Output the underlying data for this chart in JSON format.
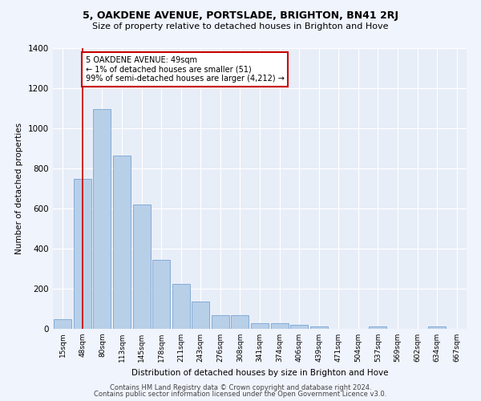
{
  "title1": "5, OAKDENE AVENUE, PORTSLADE, BRIGHTON, BN41 2RJ",
  "title2": "Size of property relative to detached houses in Brighton and Hove",
  "xlabel": "Distribution of detached houses by size in Brighton and Hove",
  "ylabel": "Number of detached properties",
  "categories": [
    "15sqm",
    "48sqm",
    "80sqm",
    "113sqm",
    "145sqm",
    "178sqm",
    "211sqm",
    "243sqm",
    "276sqm",
    "308sqm",
    "341sqm",
    "374sqm",
    "406sqm",
    "439sqm",
    "471sqm",
    "504sqm",
    "537sqm",
    "569sqm",
    "602sqm",
    "634sqm",
    "667sqm"
  ],
  "values": [
    50,
    750,
    1095,
    865,
    620,
    345,
    225,
    135,
    70,
    70,
    30,
    30,
    22,
    14,
    0,
    0,
    12,
    0,
    0,
    12,
    0
  ],
  "bar_color": "#b8cfe8",
  "bar_edgecolor": "#6699cc",
  "vline_x": 1,
  "vline_color": "#cc0000",
  "annotation_text": "5 OAKDENE AVENUE: 49sqm\n← 1% of detached houses are smaller (51)\n99% of semi-detached houses are larger (4,212) →",
  "annotation_box_color": "#cc0000",
  "ylim": [
    0,
    1400
  ],
  "yticks": [
    0,
    200,
    400,
    600,
    800,
    1000,
    1200,
    1400
  ],
  "footer1": "Contains HM Land Registry data © Crown copyright and database right 2024.",
  "footer2": "Contains public sector information licensed under the Open Government Licence v3.0.",
  "bg_color": "#e8eef8",
  "fig_bg_color": "#f0f4fc",
  "grid_color": "#ffffff"
}
